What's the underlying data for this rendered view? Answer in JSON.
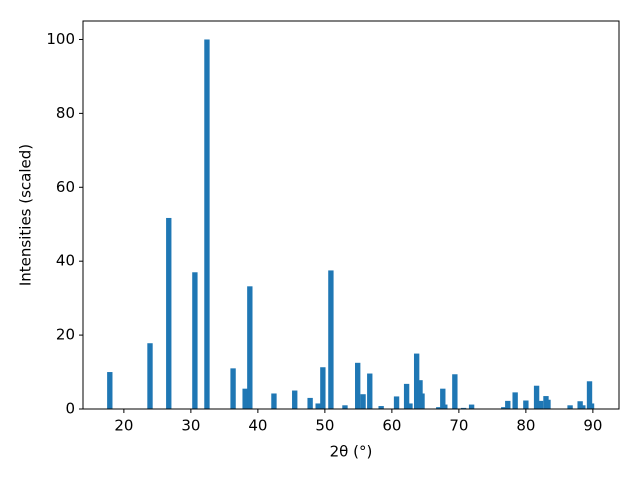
{
  "chart_data": {
    "type": "bar",
    "xlabel": "2θ (°)",
    "ylabel": "Intensities (scaled)",
    "x": [
      17.9,
      23.9,
      26.7,
      30.6,
      32.4,
      36.3,
      38.1,
      38.8,
      42.4,
      45.5,
      47.8,
      49.0,
      49.7,
      50.9,
      53.0,
      54.9,
      55.7,
      56.7,
      58.4,
      60.7,
      62.2,
      62.7,
      63.7,
      64.2,
      64.5,
      67.0,
      67.6,
      67.9,
      69.4,
      70.7,
      71.9,
      76.7,
      77.3,
      78.4,
      80.0,
      81.6,
      82.2,
      83.0,
      83.3,
      86.6,
      88.1,
      88.5,
      89.5,
      89.8
    ],
    "values": [
      10,
      17.8,
      51.7,
      37,
      100,
      11,
      5.5,
      33.2,
      4.2,
      5,
      3,
      1.5,
      11.3,
      37.5,
      1,
      12.5,
      4,
      9.6,
      0.8,
      3.4,
      6.8,
      1.5,
      15,
      7.8,
      4.2,
      0.5,
      5.5,
      1.2,
      9.4,
      0.3,
      1.2,
      0.5,
      2.2,
      4.5,
      2.3,
      6.3,
      2.2,
      3.5,
      2.5,
      1,
      2.1,
      1,
      7.5,
      1.5
    ],
    "color": "#1f77b4",
    "xlim": [
      13.9,
      93.9
    ],
    "xticks": [
      20,
      30,
      40,
      50,
      60,
      70,
      80,
      90
    ],
    "ylim": [
      0,
      105
    ],
    "yticks": [
      0,
      20,
      40,
      60,
      80,
      100
    ],
    "grid": false
  }
}
